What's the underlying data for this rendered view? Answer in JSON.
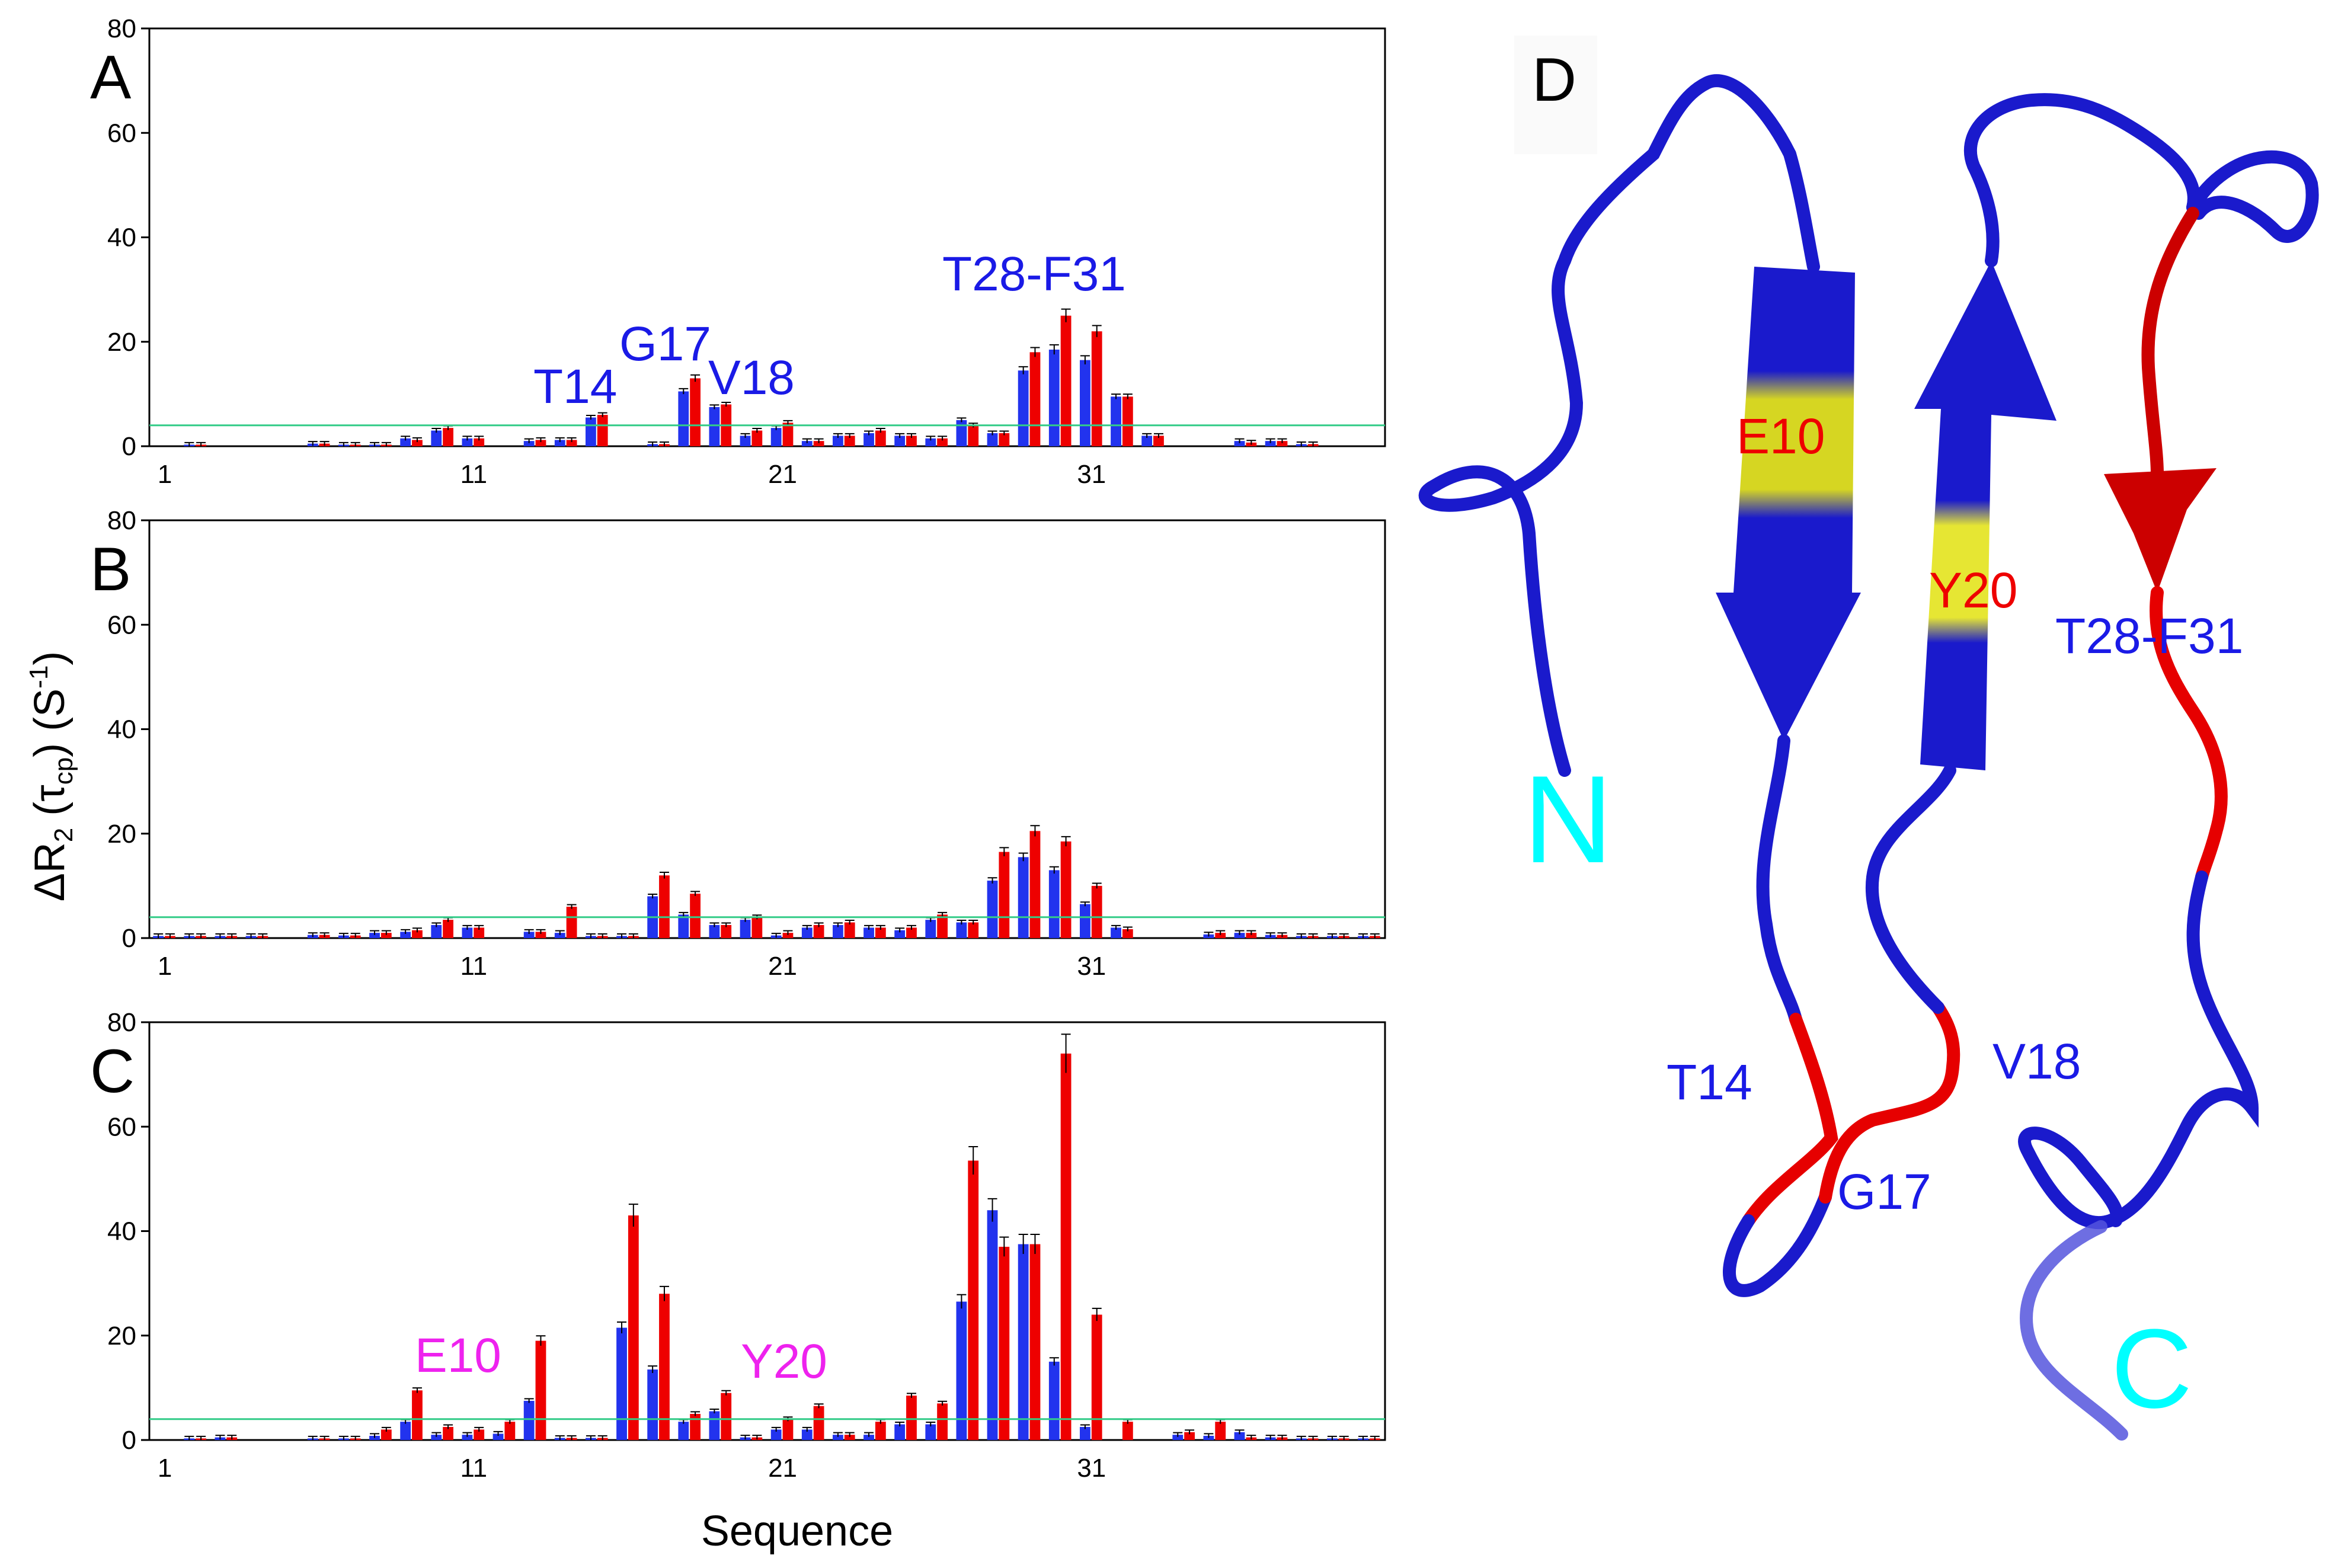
{
  "figure": {
    "xlabel": "Sequence",
    "ylabel_main": "ΔR",
    "ylabel_sub2": "2",
    "ylabel_paren_open": " (τ",
    "ylabel_sub_cp": "cp",
    "ylabel_paren_close": ") (S",
    "ylabel_sup": "-1",
    "ylabel_end": ")"
  },
  "colors": {
    "bar_blue": "#2233ee",
    "bar_red": "#ee0000",
    "threshold": "#33cc88",
    "annot_blue": "#1a1ae6",
    "annot_magenta": "#ee22ee",
    "cyan": "#00ffff",
    "yellow": "#e6e633"
  },
  "chart_data": [
    {
      "type": "bar",
      "panel": "A",
      "ylim": [
        0,
        80
      ],
      "yticks": [
        "0",
        "20",
        "40",
        "60",
        "80"
      ],
      "xticks": [
        "1",
        "11",
        "21",
        "31"
      ],
      "threshold": 4,
      "residues": [
        1,
        2,
        3,
        4,
        5,
        6,
        7,
        8,
        9,
        10,
        11,
        12,
        13,
        14,
        15,
        16,
        17,
        18,
        19,
        20,
        21,
        22,
        23,
        24,
        25,
        26,
        27,
        28,
        29,
        30,
        31,
        32,
        33,
        34,
        35,
        36,
        37,
        38,
        39,
        40
      ],
      "series": [
        {
          "name": "blue",
          "values": [
            0,
            0.3,
            0,
            0,
            0,
            0.5,
            0.3,
            0.3,
            1.5,
            3,
            1.5,
            0,
            1,
            1.2,
            5.5,
            0,
            0.4,
            10.5,
            7.5,
            2,
            3.5,
            1,
            2,
            2.5,
            2,
            1.5,
            5,
            2.5,
            14.5,
            18.5,
            16.5,
            9.5,
            2,
            0,
            0,
            1,
            1,
            0.4,
            0,
            0
          ]
        },
        {
          "name": "red",
          "values": [
            0,
            0.3,
            0,
            0,
            0,
            0.5,
            0.3,
            0.3,
            1.2,
            3.5,
            1.5,
            0,
            1.2,
            1.2,
            6,
            0,
            0.4,
            13,
            8,
            3,
            4.5,
            1,
            2,
            3,
            2,
            1.5,
            4,
            2.5,
            18,
            25,
            22,
            9.5,
            2,
            0,
            0,
            0.7,
            1,
            0.4,
            0,
            0
          ]
        }
      ],
      "annotations": [
        {
          "text": "T14",
          "color": "#1a1ae6"
        },
        {
          "text": "G17",
          "color": "#1a1ae6"
        },
        {
          "text": "V18",
          "color": "#1a1ae6"
        },
        {
          "text": "T28-F31",
          "color": "#1a1ae6"
        }
      ]
    },
    {
      "type": "bar",
      "panel": "B",
      "ylim": [
        0,
        80
      ],
      "yticks": [
        "0",
        "20",
        "40",
        "60",
        "80"
      ],
      "xticks": [
        "1",
        "11",
        "21",
        "31"
      ],
      "threshold": 4,
      "residues": [
        1,
        2,
        3,
        4,
        5,
        6,
        7,
        8,
        9,
        10,
        11,
        12,
        13,
        14,
        15,
        16,
        17,
        18,
        19,
        20,
        21,
        22,
        23,
        24,
        25,
        26,
        27,
        28,
        29,
        30,
        31,
        32,
        33,
        34,
        35,
        36,
        37,
        38,
        39,
        40
      ],
      "series": [
        {
          "name": "blue",
          "values": [
            0.4,
            0.4,
            0.4,
            0.4,
            0,
            0.6,
            0.5,
            1,
            1.2,
            2.5,
            2,
            0,
            1.2,
            1,
            0.4,
            0.4,
            8,
            4.5,
            2.5,
            3.5,
            0.5,
            2,
            2.5,
            2,
            1.5,
            3.5,
            3,
            11,
            15.5,
            13,
            6.5,
            2,
            0,
            0,
            0.7,
            1,
            0.6,
            0.4,
            0.4,
            0.4
          ]
        },
        {
          "name": "red",
          "values": [
            0.4,
            0.4,
            0.4,
            0.4,
            0,
            0.6,
            0.5,
            1,
            1.5,
            3.5,
            2,
            0,
            1.2,
            6,
            0.4,
            0.4,
            12,
            8.5,
            2.5,
            4,
            1,
            2.5,
            3,
            2,
            2,
            4.5,
            3,
            16.5,
            20.5,
            18.5,
            10,
            1.7,
            0,
            0,
            1,
            1,
            0.6,
            0.4,
            0.4,
            0.4
          ]
        }
      ],
      "annotations": []
    },
    {
      "type": "bar",
      "panel": "C",
      "ylim": [
        0,
        80
      ],
      "yticks": [
        "0",
        "20",
        "40",
        "60",
        "80"
      ],
      "xticks": [
        "1",
        "11",
        "21",
        "31"
      ],
      "threshold": 4,
      "residues": [
        1,
        2,
        3,
        4,
        5,
        6,
        7,
        8,
        9,
        10,
        11,
        12,
        13,
        14,
        15,
        16,
        17,
        18,
        19,
        20,
        21,
        22,
        23,
        24,
        25,
        26,
        27,
        28,
        29,
        30,
        31,
        32,
        33,
        34,
        35,
        36,
        37,
        38,
        39,
        40
      ],
      "series": [
        {
          "name": "blue",
          "values": [
            0,
            0.3,
            0.5,
            0,
            0,
            0.3,
            0.3,
            0.8,
            3.5,
            1,
            1,
            1.2,
            7.5,
            0.4,
            0.4,
            21.5,
            13.5,
            3.5,
            5.5,
            0.5,
            2,
            2,
            1,
            1,
            3,
            3,
            26.5,
            44,
            37.5,
            15,
            2.5,
            0,
            0,
            1,
            0.8,
            1.5,
            0.5,
            0.3,
            0.3,
            0.3
          ]
        },
        {
          "name": "red",
          "values": [
            0,
            0.3,
            0.5,
            0,
            0,
            0.3,
            0.3,
            2,
            9.5,
            2.5,
            2,
            3.5,
            19,
            0.4,
            0.4,
            43,
            28,
            5,
            9,
            0.5,
            4,
            6.5,
            1,
            3.5,
            8.5,
            7,
            53.5,
            37,
            37.5,
            74,
            24,
            3.5,
            0,
            1.5,
            3.5,
            0.5,
            0.5,
            0.3,
            0.3,
            0.3
          ]
        }
      ],
      "annotations": [
        {
          "text": "E10",
          "color": "#ee22ee"
        },
        {
          "text": "Y20",
          "color": "#ee22ee"
        }
      ]
    }
  ],
  "structure": {
    "panel_label": "D",
    "labels": [
      {
        "text": "E10",
        "color": "#ee0000"
      },
      {
        "text": "Y20",
        "color": "#ee0000"
      },
      {
        "text": "T28-F31",
        "color": "#1a1ae6"
      },
      {
        "text": "N",
        "color": "#00ffff"
      },
      {
        "text": "T14",
        "color": "#1a1ae6"
      },
      {
        "text": "V18",
        "color": "#1a1ae6"
      },
      {
        "text": "G17",
        "color": "#1a1ae6"
      },
      {
        "text": "C",
        "color": "#00ffff"
      }
    ]
  }
}
